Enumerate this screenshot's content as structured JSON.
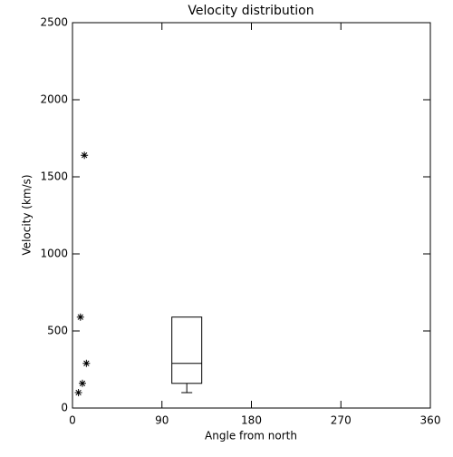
{
  "chart_data": {
    "type": "scatter",
    "title": "Velocity distribution",
    "x_label": "Angle from north",
    "y_label": "Velocity (km/s)",
    "x": [
      12,
      8,
      14,
      10,
      6
    ],
    "values": [
      1640,
      590,
      290,
      160,
      100
    ],
    "color": "#000000",
    "box": {
      "x": 115,
      "min": 100,
      "q1": 160,
      "median": 290,
      "q3": 590,
      "max": 590
    },
    "xlim": [
      0,
      360
    ],
    "xticks": [
      0,
      90,
      180,
      270,
      360
    ],
    "ylim": [
      0,
      2500
    ],
    "yticks": [
      0,
      500,
      1000,
      1500,
      2000,
      2500
    ]
  }
}
